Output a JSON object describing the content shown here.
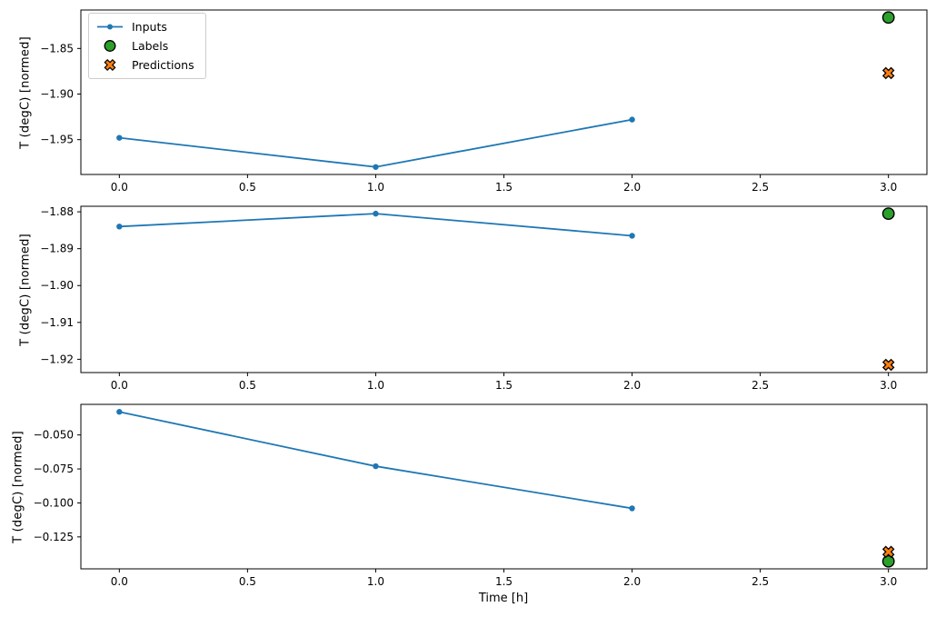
{
  "figure": {
    "background": "#ffffff",
    "xlabel": "Time [h]"
  },
  "colors": {
    "inputs": "#1f77b4",
    "labels": "#2ca02c",
    "predictions": "#ff7f0e",
    "marker_edge": "#000000",
    "spine": "#000000",
    "legend_border": "#cccccc"
  },
  "legend": {
    "position": "upper-left",
    "items": [
      {
        "label": "Inputs",
        "marker": "line-dot",
        "color": "#1f77b4"
      },
      {
        "label": "Labels",
        "marker": "circle",
        "color": "#2ca02c",
        "edgecolor": "#000000"
      },
      {
        "label": "Predictions",
        "marker": "X",
        "color": "#ff7f0e",
        "edgecolor": "#000000"
      }
    ]
  },
  "chart_data": [
    {
      "type": "line",
      "ylabel": "T (degC) [normed]",
      "xlim": [
        -0.15,
        3.15
      ],
      "ylim": [
        -1.9882,
        -1.8078
      ],
      "xticks": [
        0.0,
        0.5,
        1.0,
        1.5,
        2.0,
        2.5,
        3.0
      ],
      "xtick_labels": [
        "0.0",
        "0.5",
        "1.0",
        "1.5",
        "2.0",
        "2.5",
        "3.0"
      ],
      "yticks": [
        -1.85,
        -1.9,
        -1.95
      ],
      "ytick_labels": [
        "−1.85",
        "−1.90",
        "−1.95"
      ],
      "grid": false,
      "series": [
        {
          "name": "Inputs",
          "kind": "line",
          "marker": "dot",
          "color": "#1f77b4",
          "x": [
            0,
            1,
            2
          ],
          "y": [
            -1.948,
            -1.98,
            -1.928
          ]
        },
        {
          "name": "Labels",
          "kind": "scatter",
          "marker": "circle",
          "color": "#2ca02c",
          "edgecolor": "#000000",
          "x": [
            3
          ],
          "y": [
            -1.816
          ]
        },
        {
          "name": "Predictions",
          "kind": "scatter",
          "marker": "X",
          "color": "#ff7f0e",
          "edgecolor": "#000000",
          "x": [
            3
          ],
          "y": [
            -1.877
          ]
        }
      ]
    },
    {
      "type": "line",
      "ylabel": "T (degC) [normed]",
      "xlim": [
        -0.15,
        3.15
      ],
      "ylim": [
        -1.9236,
        -1.8785
      ],
      "xticks": [
        0.0,
        0.5,
        1.0,
        1.5,
        2.0,
        2.5,
        3.0
      ],
      "xtick_labels": [
        "0.0",
        "0.5",
        "1.0",
        "1.5",
        "2.0",
        "2.5",
        "3.0"
      ],
      "yticks": [
        -1.88,
        -1.89,
        -1.9,
        -1.91,
        -1.92
      ],
      "ytick_labels": [
        "−1.88",
        "−1.89",
        "−1.90",
        "−1.91",
        "−1.92"
      ],
      "grid": false,
      "series": [
        {
          "name": "Inputs",
          "kind": "line",
          "marker": "dot",
          "color": "#1f77b4",
          "x": [
            0,
            1,
            2
          ],
          "y": [
            -1.884,
            -1.8805,
            -1.8865
          ]
        },
        {
          "name": "Labels",
          "kind": "scatter",
          "marker": "circle",
          "color": "#2ca02c",
          "edgecolor": "#000000",
          "x": [
            3
          ],
          "y": [
            -1.8805
          ]
        },
        {
          "name": "Predictions",
          "kind": "scatter",
          "marker": "X",
          "color": "#ff7f0e",
          "edgecolor": "#000000",
          "x": [
            3
          ],
          "y": [
            -1.9215
          ]
        }
      ]
    },
    {
      "type": "line",
      "ylabel": "T (degC) [normed]",
      "xlabel": "Time [h]",
      "xlim": [
        -0.15,
        3.15
      ],
      "ylim": [
        -0.1485,
        -0.0275
      ],
      "xticks": [
        0.0,
        0.5,
        1.0,
        1.5,
        2.0,
        2.5,
        3.0
      ],
      "xtick_labels": [
        "0.0",
        "0.5",
        "1.0",
        "1.5",
        "2.0",
        "2.5",
        "3.0"
      ],
      "yticks": [
        -0.05,
        -0.075,
        -0.1,
        -0.125
      ],
      "ytick_labels": [
        "−0.050",
        "−0.075",
        "−0.100",
        "−0.125"
      ],
      "grid": false,
      "series": [
        {
          "name": "Inputs",
          "kind": "line",
          "marker": "dot",
          "color": "#1f77b4",
          "x": [
            0,
            1,
            2
          ],
          "y": [
            -0.033,
            -0.073,
            -0.104
          ]
        },
        {
          "name": "Labels",
          "kind": "scatter",
          "marker": "circle",
          "color": "#2ca02c",
          "edgecolor": "#000000",
          "x": [
            3
          ],
          "y": [
            -0.143
          ]
        },
        {
          "name": "Predictions",
          "kind": "scatter",
          "marker": "X",
          "color": "#ff7f0e",
          "edgecolor": "#000000",
          "x": [
            3
          ],
          "y": [
            -0.136
          ]
        }
      ]
    }
  ]
}
